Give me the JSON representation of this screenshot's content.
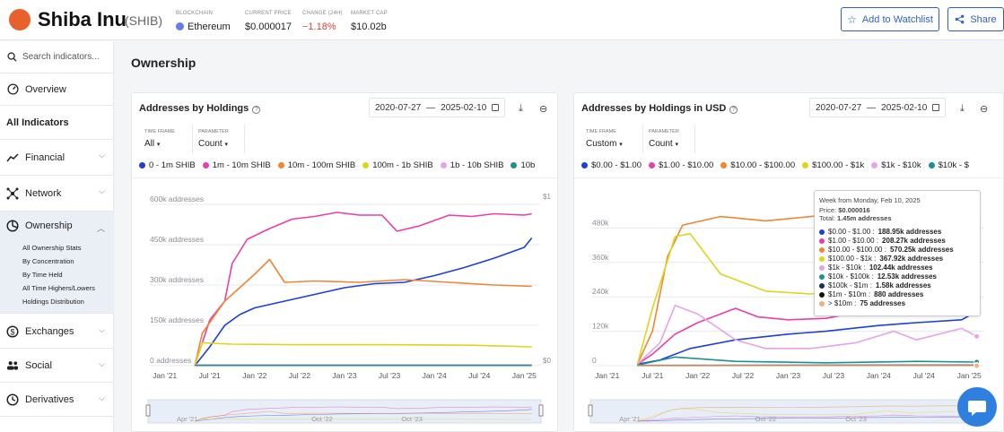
{
  "header": {
    "coin_name": "Shiba Inu",
    "coin_symbol": "(SHIB)",
    "stats": [
      {
        "label": "BLOCKCHAIN",
        "value": "Ethereum"
      },
      {
        "label": "CURRENT PRICE",
        "value": "$0.000017"
      },
      {
        "label": "CHANGE (24H)",
        "value": "−1.18%"
      },
      {
        "label": "MARKET CAP",
        "value": "$10.02b"
      }
    ],
    "watchlist_label": "Add to Watchlist",
    "share_label": "Share"
  },
  "sidebar": {
    "search_placeholder": "Search indicators...",
    "overview": "Overview",
    "all_indicators": "All Indicators",
    "items": [
      {
        "label": "Financial",
        "icon": "trend-icon"
      },
      {
        "label": "Network",
        "icon": "network-icon"
      },
      {
        "label": "Ownership",
        "icon": "pie-icon"
      },
      {
        "label": "Exchanges",
        "icon": "exchange-icon"
      },
      {
        "label": "Social",
        "icon": "people-icon"
      },
      {
        "label": "Derivatives",
        "icon": "derivatives-icon"
      }
    ],
    "ownership_sub": [
      "All Ownership Stats",
      "By Concentration",
      "By Time Held",
      "All Time Highers/Lowers",
      "Holdings Distribution"
    ]
  },
  "page": {
    "title": "Ownership"
  },
  "colors": {
    "accent": "#2f5fc4",
    "blue": "#1d3fd6",
    "pink": "#e83faa",
    "orange": "#f08535",
    "yellow": "#dcd51a",
    "lilac": "#e6a3e8",
    "teal": "#1f8f8f",
    "navy": "#1b2a6b",
    "black": "#111111",
    "peach": "#f3b080"
  },
  "cards": [
    {
      "title": "Addresses by Holdings",
      "date_from": "2020-07-27",
      "date_sep": "—",
      "date_to": "2025-02-10",
      "timeframe_label": "TIME FRAME",
      "timeframe_value": "All",
      "parameter_label": "PARAMETER",
      "parameter_value": "Count",
      "legend": [
        {
          "name": "0 - 1m SHIB",
          "color": "#1d3fd6"
        },
        {
          "name": "1m - 10m SHIB",
          "color": "#e83faa"
        },
        {
          "name": "10m - 100m SHIB",
          "color": "#f08535"
        },
        {
          "name": "100m - 1b SHIB",
          "color": "#dcd51a"
        },
        {
          "name": "1b - 10b SHIB",
          "color": "#e6a3e8"
        },
        {
          "name": "10b",
          "color": "#1f8f8f"
        }
      ]
    },
    {
      "title": "Addresses by Holdings in USD",
      "date_from": "2020-07-27",
      "date_sep": "—",
      "date_to": "2025-02-10",
      "timeframe_label": "TIME FRAME",
      "timeframe_value": "Custom",
      "parameter_label": "PARAMETER",
      "parameter_value": "Count",
      "legend": [
        {
          "name": "$0.00 - $1.00",
          "color": "#1d3fd6"
        },
        {
          "name": "$1.00 - $10.00",
          "color": "#e83faa"
        },
        {
          "name": "$10.00 - $100.00",
          "color": "#f08535"
        },
        {
          "name": "$100.00 - $1k",
          "color": "#dcd51a"
        },
        {
          "name": "$1k - $10k",
          "color": "#e6a3e8"
        },
        {
          "name": "$10k - $",
          "color": "#1f8f8f"
        }
      ]
    }
  ],
  "tooltip": {
    "week": "Week from Monday, Feb 10, 2025",
    "price_label": "Price:",
    "price": "$0.000016",
    "total_label": "Total:",
    "total": "1.45m addresses",
    "rows": [
      {
        "label": "$0.00 - $1.00 :",
        "value": "188.95k addresses",
        "color": "#1d3fd6"
      },
      {
        "label": "$1.00 - $10.00 :",
        "value": "208.27k addresses",
        "color": "#e83faa"
      },
      {
        "label": "$10.00 - $100.00 :",
        "value": "570.25k addresses",
        "color": "#f08535"
      },
      {
        "label": "$100.00 - $1k :",
        "value": "367.92k addresses",
        "color": "#dcd51a"
      },
      {
        "label": "$1k - $10k :",
        "value": "102.44k addresses",
        "color": "#e6a3e8"
      },
      {
        "label": "$10k - $100k :",
        "value": "12.53k addresses",
        "color": "#1f8f8f"
      },
      {
        "label": "$100k - $1m :",
        "value": "1.58k addresses",
        "color": "#1b2a6b"
      },
      {
        "label": "$1m - $10m :",
        "value": "880 addresses",
        "color": "#111111"
      },
      {
        "label": "> $10m :",
        "value": "75 addresses",
        "color": "#f3b080"
      }
    ]
  },
  "chart_data": [
    {
      "type": "line",
      "title": "Addresses by Holdings",
      "x_ticks": [
        "Jan '21",
        "Jul '21",
        "Jan '22",
        "Jul '22",
        "Jan '23",
        "Jul '23",
        "Jan '24",
        "Jul '24",
        "Jan '25"
      ],
      "y_ticks": [
        "0 addresses",
        "150k addresses",
        "300k addresses",
        "450k addresses",
        "600k addresses"
      ],
      "y2_ticks": [
        "$0",
        "$1"
      ],
      "ylim": [
        0,
        640000
      ],
      "navigator_labels": [
        "Apr '21",
        "Oct '22",
        "Oct '23"
      ],
      "series": [
        {
          "name": "0 - 1m SHIB",
          "color": "#1d3fd6",
          "x": [
            "2021-05",
            "2021-07",
            "2021-09",
            "2021-11",
            "2022-01",
            "2022-05",
            "2022-09",
            "2023-01",
            "2023-05",
            "2023-09",
            "2024-01",
            "2024-05",
            "2024-09",
            "2025-01",
            "2025-02"
          ],
          "values": [
            0,
            70000,
            150000,
            190000,
            215000,
            240000,
            265000,
            290000,
            305000,
            310000,
            335000,
            365000,
            400000,
            440000,
            475000
          ]
        },
        {
          "name": "1m - 10m SHIB",
          "color": "#e83faa",
          "x": [
            "2021-05",
            "2021-07",
            "2021-09",
            "2021-10",
            "2021-12",
            "2022-03",
            "2022-06",
            "2022-09",
            "2022-12",
            "2023-03",
            "2023-06",
            "2023-08",
            "2023-11",
            "2024-03",
            "2024-06",
            "2024-09",
            "2025-01",
            "2025-02"
          ],
          "values": [
            0,
            170000,
            240000,
            380000,
            470000,
            510000,
            545000,
            555000,
            570000,
            560000,
            560000,
            500000,
            520000,
            560000,
            555000,
            565000,
            560000,
            565000
          ]
        },
        {
          "name": "10m - 100m SHIB",
          "color": "#f08535",
          "x": [
            "2021-05",
            "2021-06",
            "2021-09",
            "2021-11",
            "2022-01",
            "2022-03",
            "2022-05",
            "2022-09",
            "2023-03",
            "2023-09",
            "2024-03",
            "2024-09",
            "2025-02"
          ],
          "values": [
            0,
            120000,
            240000,
            290000,
            340000,
            395000,
            310000,
            315000,
            310000,
            320000,
            310000,
            300000,
            295000
          ]
        },
        {
          "name": "100m - 1b SHIB",
          "color": "#dcd51a",
          "x": [
            "2021-05",
            "2021-06",
            "2021-10",
            "2022-06",
            "2023-06",
            "2024-06",
            "2025-02"
          ],
          "values": [
            0,
            85000,
            80000,
            78000,
            78000,
            76000,
            70000
          ]
        },
        {
          "name": "1b - 10b SHIB",
          "color": "#e6a3e8",
          "x": [
            "2021-05",
            "2025-02"
          ],
          "values": [
            3000,
            3000
          ]
        },
        {
          "name": "10b",
          "color": "#1f8f8f",
          "x": [
            "2021-05",
            "2025-02"
          ],
          "values": [
            1000,
            1000
          ]
        }
      ]
    },
    {
      "type": "line",
      "title": "Addresses by Holdings in USD",
      "x_ticks": [
        "Jan '21",
        "Jul '21",
        "Jan '22",
        "Jul '22",
        "Jan '23",
        "Jul '23",
        "Jan '24",
        "Jul '24",
        "Jan '25"
      ],
      "y_ticks": [
        "0",
        "120k",
        "240k",
        "360k",
        "480k"
      ],
      "ylim": [
        0,
        600000
      ],
      "navigator_labels": [
        "Apr '21",
        "Oct '22",
        "Oct '23"
      ],
      "series": [
        {
          "name": "$0.00 - $1.00",
          "color": "#1d3fd6",
          "x": [
            "2021-05",
            "2021-08",
            "2021-12",
            "2022-06",
            "2023-01",
            "2023-06",
            "2024-01",
            "2024-06",
            "2024-12",
            "2025-02"
          ],
          "values": [
            5000,
            20000,
            60000,
            90000,
            110000,
            120000,
            140000,
            150000,
            160000,
            188950
          ]
        },
        {
          "name": "$1.00 - $10.00",
          "color": "#e83faa",
          "x": [
            "2021-05",
            "2021-07",
            "2021-10",
            "2022-01",
            "2022-06",
            "2022-09",
            "2023-01",
            "2023-06",
            "2024-01",
            "2024-03",
            "2024-06",
            "2024-12",
            "2025-02"
          ],
          "values": [
            5000,
            40000,
            110000,
            150000,
            200000,
            170000,
            160000,
            165000,
            200000,
            230000,
            200000,
            190000,
            208270
          ]
        },
        {
          "name": "$10.00 - $100.00",
          "color": "#f08535",
          "x": [
            "2021-05",
            "2021-07",
            "2021-09",
            "2021-11",
            "2022-04",
            "2022-10",
            "2023-04",
            "2023-10",
            "2024-02",
            "2024-05",
            "2024-10",
            "2025-01",
            "2025-02"
          ],
          "values": [
            5000,
            120000,
            380000,
            490000,
            520000,
            505000,
            520000,
            540000,
            570000,
            560000,
            575000,
            570000,
            570250
          ]
        },
        {
          "name": "$100.00 - $1k",
          "color": "#dcd51a",
          "x": [
            "2021-05",
            "2021-07",
            "2021-10",
            "2021-12",
            "2022-04",
            "2022-10",
            "2023-04",
            "2023-10",
            "2024-02",
            "2024-05",
            "2024-10",
            "2025-01",
            "2025-02"
          ],
          "values": [
            5000,
            200000,
            450000,
            460000,
            320000,
            260000,
            250000,
            260000,
            380000,
            320000,
            350000,
            380000,
            367920
          ]
        },
        {
          "name": "$1k - $10k",
          "color": "#e6a3e8",
          "x": [
            "2021-05",
            "2021-08",
            "2021-10",
            "2022-01",
            "2022-06",
            "2022-10",
            "2023-04",
            "2023-10",
            "2024-03",
            "2024-06",
            "2024-12",
            "2025-02"
          ],
          "values": [
            5000,
            80000,
            210000,
            180000,
            90000,
            60000,
            60000,
            80000,
            120000,
            90000,
            130000,
            102440
          ]
        },
        {
          "name": "$10k - $100k",
          "color": "#1f8f8f",
          "x": [
            "2021-05",
            "2021-10",
            "2022-06",
            "2023-06",
            "2024-06",
            "2025-02"
          ],
          "values": [
            2000,
            30000,
            15000,
            10000,
            15000,
            12530
          ]
        },
        {
          "name": "$100k - $1m",
          "color": "#1b2a6b",
          "x": [
            "2021-05",
            "2025-02"
          ],
          "values": [
            1000,
            1580
          ]
        },
        {
          "name": "$1m - $10m",
          "color": "#111111",
          "x": [
            "2021-05",
            "2025-02"
          ],
          "values": [
            500,
            880
          ]
        },
        {
          "name": "> $10m",
          "color": "#f3b080",
          "x": [
            "2021-05",
            "2025-02"
          ],
          "values": [
            50,
            75
          ]
        }
      ]
    }
  ]
}
